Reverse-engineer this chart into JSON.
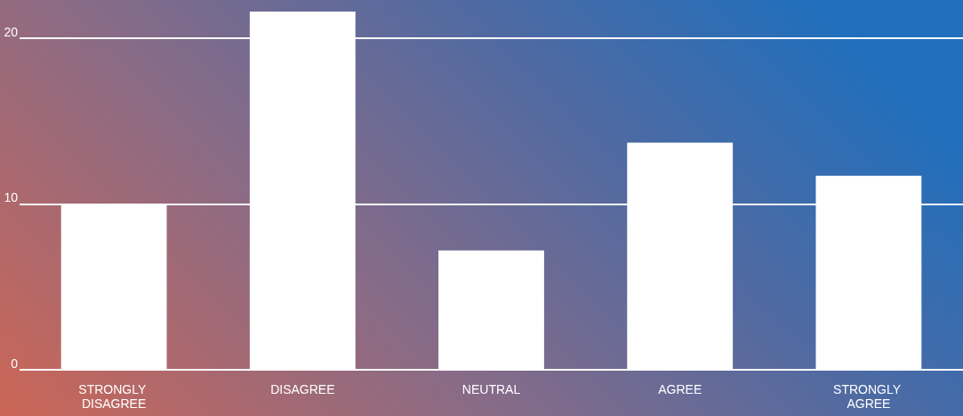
{
  "chart_data": {
    "type": "bar",
    "categories": [
      "STRONGLY DISAGREE",
      "DISAGREE",
      "NEUTRAL",
      "AGREE",
      "STRONGLY AGREE"
    ],
    "values": [
      10,
      21.6,
      7.2,
      13.7,
      11.7
    ],
    "color": "#ffffff",
    "ylim": [
      0,
      22.3
    ],
    "yticks": [
      0,
      10,
      20
    ],
    "grid": "y"
  }
}
